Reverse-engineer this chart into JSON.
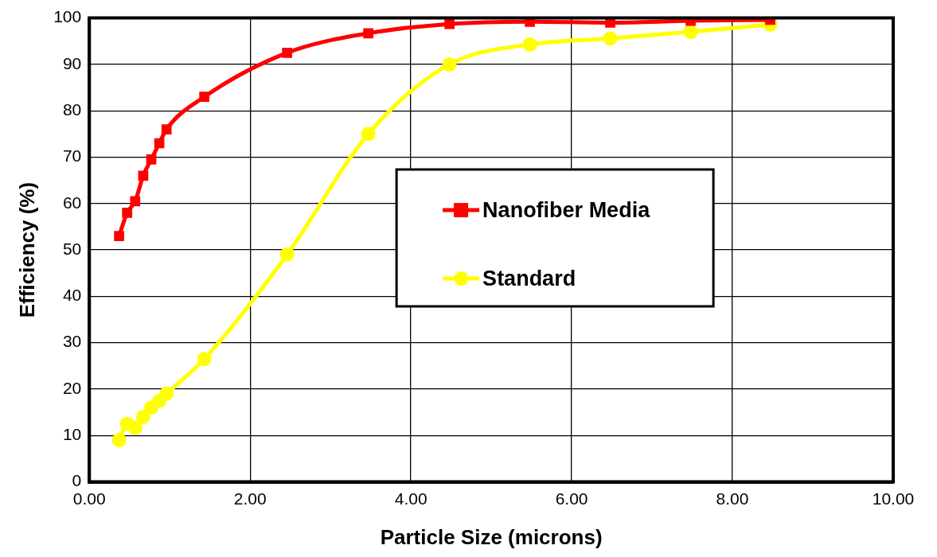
{
  "chart_data": {
    "type": "line",
    "xlabel": "Particle Size (microns)",
    "ylabel": "Efficiency (%)",
    "xlim": [
      0,
      10
    ],
    "xticks": [
      {
        "value": 0,
        "label": "0.00"
      },
      {
        "value": 2,
        "label": "2.00"
      },
      {
        "value": 4,
        "label": "4.00"
      },
      {
        "value": 6,
        "label": "6.00"
      },
      {
        "value": 8,
        "label": "8.00"
      },
      {
        "value": 10,
        "label": "10.00"
      }
    ],
    "ylim": [
      0,
      100
    ],
    "yticks": [
      0,
      10,
      20,
      30,
      40,
      50,
      60,
      70,
      80,
      90,
      100
    ],
    "grid": true,
    "legend": "center",
    "series": [
      {
        "name": "Nanofiber Media",
        "color": "#ff0000",
        "marker": "square",
        "x": [
          0.37,
          0.47,
          0.57,
          0.67,
          0.77,
          0.87,
          0.96,
          1.43,
          2.46,
          3.47,
          4.48,
          5.48,
          6.48,
          7.48,
          8.47
        ],
        "values": [
          53,
          58,
          60.5,
          66,
          69.5,
          73,
          76,
          83,
          92.5,
          96.7,
          98.7,
          99.2,
          99,
          99.4,
          99.6
        ]
      },
      {
        "name": "Standard",
        "color": "#ffff00",
        "marker": "circle",
        "x": [
          0.37,
          0.47,
          0.57,
          0.67,
          0.77,
          0.87,
          0.96,
          1.43,
          2.46,
          3.47,
          4.48,
          5.48,
          6.48,
          7.48,
          8.47
        ],
        "values": [
          9,
          12.5,
          11.7,
          14,
          16,
          17.5,
          19,
          26.5,
          49,
          75,
          90,
          94.3,
          95.6,
          97,
          98.6
        ]
      }
    ]
  }
}
